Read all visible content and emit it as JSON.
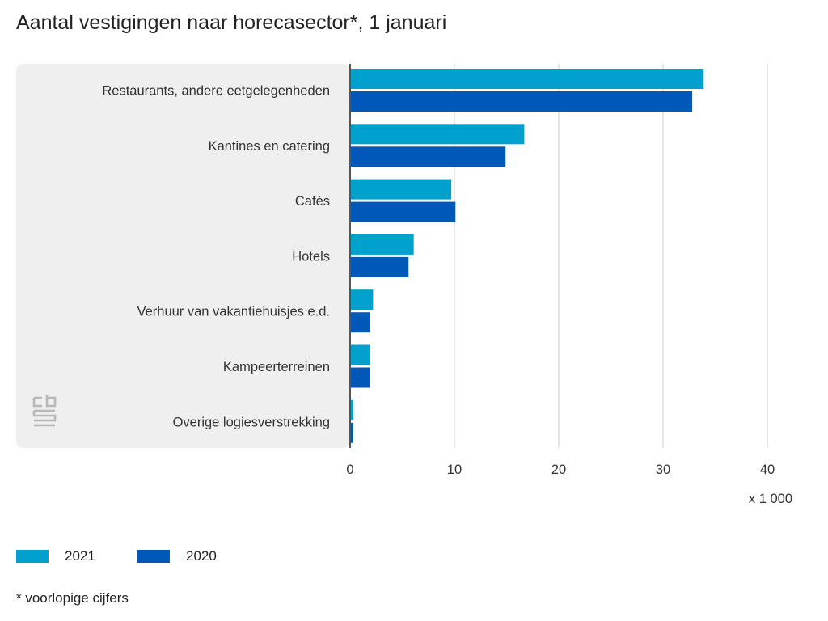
{
  "chart_data": {
    "type": "bar",
    "orientation": "horizontal",
    "title": "Aantal vestigingen naar horecasector*, 1 januari",
    "categories": [
      "Restaurants, andere eetgelegenheden",
      "Kantines en catering",
      "Cafés",
      "Hotels",
      "Verhuur van vakantiehuisjes e.d.",
      "Kampeerterreinen",
      "Overige logiesverstrekking"
    ],
    "series": [
      {
        "name": "2021",
        "color": "#00a1cd",
        "values": [
          33.9,
          16.7,
          9.7,
          6.1,
          2.2,
          1.9,
          0.3
        ]
      },
      {
        "name": "2020",
        "color": "#0058b8",
        "values": [
          32.8,
          14.9,
          10.1,
          5.6,
          1.9,
          1.9,
          0.3
        ]
      }
    ],
    "xlim": [
      0,
      40
    ],
    "xticks": [
      0,
      10,
      20,
      30,
      40
    ],
    "xunit": "x 1 000",
    "grid": true,
    "legend_position": "bottom-left",
    "footnote": "* voorlopige cijfers"
  },
  "branding": {
    "logo_icon": "cbs-logo-icon"
  }
}
